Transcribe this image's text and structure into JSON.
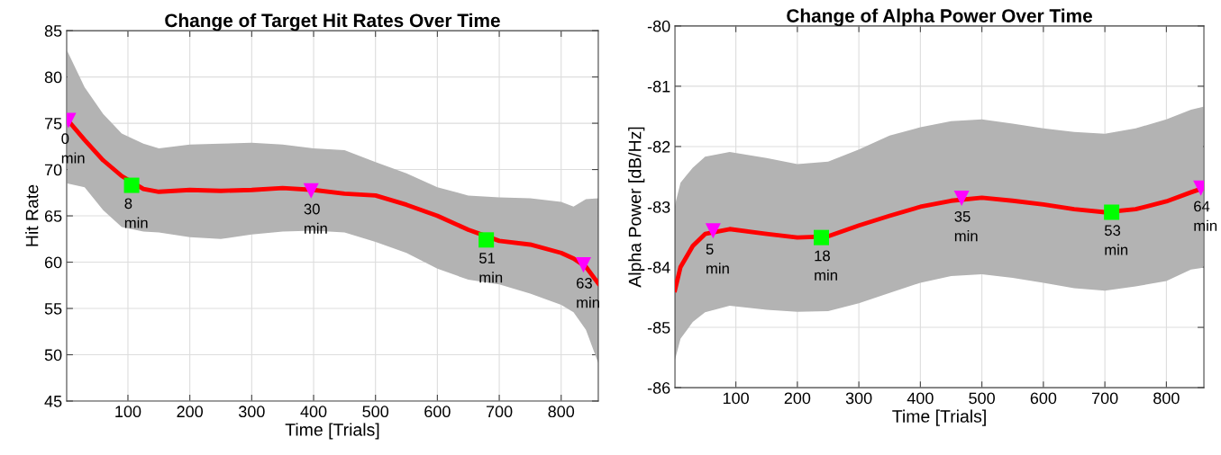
{
  "chart_data": [
    {
      "type": "line",
      "title": "Change of Target Hit Rates Over Time",
      "xlabel": "Time [Trials]",
      "ylabel": "Hit Rate",
      "xlim": [
        1,
        860
      ],
      "xticks": [
        100,
        200,
        300,
        400,
        500,
        600,
        700,
        800
      ],
      "ylim": [
        45,
        85
      ],
      "yticks": [
        45,
        50,
        55,
        60,
        65,
        70,
        75,
        80,
        85
      ],
      "grid": true,
      "series": [
        {
          "color": "#ff0000",
          "x": [
            2,
            30,
            60,
            90,
            125,
            150,
            200,
            250,
            300,
            350,
            400,
            450,
            500,
            550,
            600,
            650,
            700,
            750,
            800,
            820,
            840,
            860
          ],
          "values": [
            75.4,
            73.2,
            71.0,
            69.3,
            67.9,
            67.6,
            67.8,
            67.7,
            67.8,
            68.0,
            67.8,
            67.4,
            67.2,
            66.2,
            65.0,
            63.5,
            62.3,
            61.9,
            61.0,
            60.4,
            59.5,
            57.7
          ],
          "upper": [
            82.8,
            78.9,
            76.0,
            73.9,
            72.8,
            72.3,
            72.7,
            72.8,
            72.9,
            72.7,
            72.3,
            72.1,
            70.8,
            69.6,
            68.1,
            67.2,
            67.0,
            66.9,
            66.5,
            66.0,
            66.8,
            66.9
          ],
          "lower": [
            68.5,
            68.1,
            65.6,
            63.8,
            63.3,
            63.2,
            62.7,
            62.5,
            63.0,
            63.3,
            63.4,
            63.2,
            62.2,
            61.0,
            59.3,
            58.1,
            57.6,
            56.6,
            55.4,
            54.6,
            52.7,
            49.1
          ]
        },
        {
          "type": "scatter",
          "marker": "triangle",
          "color": "#ff00ff",
          "x": [
            4,
            396,
            836
          ],
          "values": [
            75.3,
            67.7,
            59.7
          ]
        },
        {
          "type": "scatter",
          "marker": "square",
          "color": "#00ff00",
          "x": [
            106,
            679
          ],
          "values": [
            68.3,
            62.4
          ]
        }
      ],
      "annotations": [
        {
          "text": "0\nmin",
          "x": 4,
          "y": 75.3
        },
        {
          "text": "8\nmin",
          "x": 106,
          "y": 68.3
        },
        {
          "text": "30\nmin",
          "x": 396,
          "y": 67.7
        },
        {
          "text": "51\nmin",
          "x": 679,
          "y": 62.4
        },
        {
          "text": "63\nmin",
          "x": 836,
          "y": 59.7
        }
      ]
    },
    {
      "type": "line",
      "title": "Change of Alpha Power Over Time",
      "xlabel": "Time [Trials]",
      "ylabel": "Alpha Power [dB/Hz]",
      "xlim": [
        1,
        861
      ],
      "xticks": [
        100,
        200,
        300,
        400,
        500,
        600,
        700,
        800
      ],
      "ylim": [
        -86,
        -80
      ],
      "yticks": [
        -86,
        -85,
        -84,
        -83,
        -82,
        -81,
        -80
      ],
      "grid": true,
      "series": [
        {
          "color": "#ff0000",
          "x": [
            1,
            10,
            30,
            50,
            90,
            150,
            200,
            250,
            300,
            350,
            400,
            450,
            500,
            550,
            600,
            650,
            700,
            750,
            800,
            840,
            860
          ],
          "values": [
            -84.38,
            -84.0,
            -83.65,
            -83.45,
            -83.37,
            -83.45,
            -83.51,
            -83.49,
            -83.31,
            -83.15,
            -83.0,
            -82.9,
            -82.85,
            -82.9,
            -82.96,
            -83.04,
            -83.09,
            -83.04,
            -82.91,
            -82.76,
            -82.69
          ],
          "upper": [
            -82.97,
            -82.6,
            -82.35,
            -82.17,
            -82.09,
            -82.19,
            -82.29,
            -82.25,
            -82.05,
            -81.82,
            -81.68,
            -81.58,
            -81.55,
            -81.62,
            -81.7,
            -81.76,
            -81.79,
            -81.7,
            -81.55,
            -81.39,
            -81.34
          ],
          "lower": [
            -85.54,
            -85.19,
            -84.91,
            -84.75,
            -84.64,
            -84.71,
            -84.74,
            -84.73,
            -84.6,
            -84.43,
            -84.26,
            -84.15,
            -84.12,
            -84.18,
            -84.26,
            -84.35,
            -84.39,
            -84.32,
            -84.23,
            -84.04,
            -84.01
          ]
        },
        {
          "type": "scatter",
          "marker": "triangle",
          "color": "#ff00ff",
          "x": [
            63,
            467,
            856
          ],
          "values": [
            -83.4,
            -82.86,
            -82.69
          ]
        },
        {
          "type": "scatter",
          "marker": "square",
          "color": "#00ff00",
          "x": [
            239,
            711
          ],
          "values": [
            -83.51,
            -83.09
          ]
        }
      ],
      "annotations": [
        {
          "text": "5\nmin",
          "x": 63,
          "y": -83.4
        },
        {
          "text": "18\nmin",
          "x": 239,
          "y": -83.51
        },
        {
          "text": "35\nmin",
          "x": 467,
          "y": -82.86
        },
        {
          "text": "53\nmin",
          "x": 711,
          "y": -83.09
        },
        {
          "text": "64\nmin",
          "x": 856,
          "y": -82.69
        }
      ]
    }
  ]
}
